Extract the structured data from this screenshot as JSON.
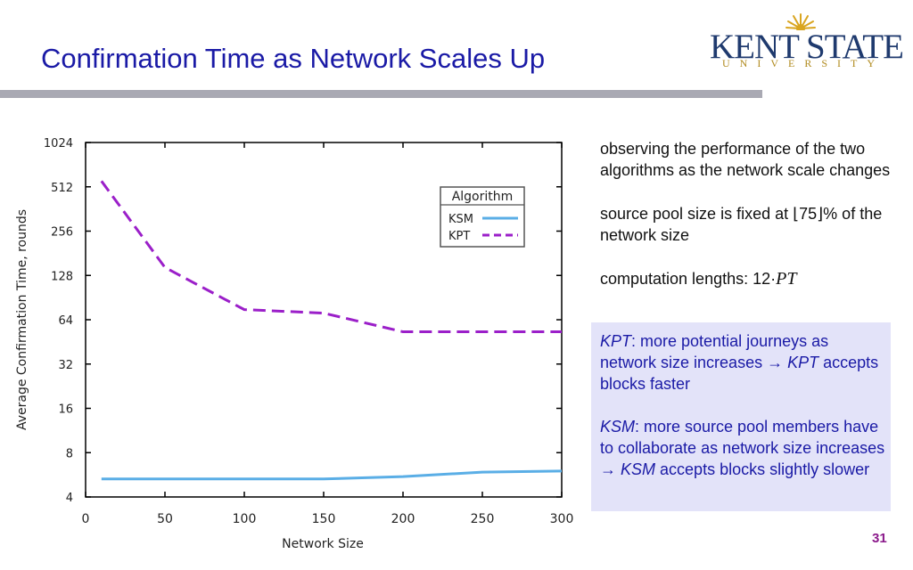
{
  "slide": {
    "title": "Confirmation Time as Network Scales Up",
    "page_number": "31"
  },
  "logo": {
    "main": "KENT STATE",
    "sub": "UNIVERSITY"
  },
  "notes": {
    "p1": "observing the performance of the two algorithms as the network scale changes",
    "p2": "source pool size is fixed at ⌊75⌋% of the network size",
    "p3_prefix": "computation lengths: 12·",
    "p3_var": "PT"
  },
  "highlight": {
    "kpt_name": "KPT",
    "kpt_text_1": ": more potential journeys as network size increases → ",
    "kpt_text_2": " accepts blocks faster",
    "ksm_name": "KSM",
    "ksm_text_1": ": more source pool members have to collaborate as network size increases → ",
    "ksm_text_2": " accepts blocks slightly slower"
  },
  "colors": {
    "title": "#1a1aa6",
    "ksm": "#5aaee6",
    "kpt": "#9b1fc9",
    "highlight_bg": "#e3e3f9"
  },
  "chart_data": {
    "type": "line",
    "title": "",
    "xlabel": "Network Size",
    "ylabel": "Average Confirmation Time, rounds",
    "yscale": "log2",
    "xlim": [
      0,
      300
    ],
    "ylim": [
      4,
      1024
    ],
    "xticks": [
      0,
      50,
      100,
      150,
      200,
      250,
      300
    ],
    "yticks": [
      4,
      8,
      16,
      32,
      64,
      128,
      256,
      512,
      1024
    ],
    "x": [
      10,
      50,
      100,
      150,
      200,
      250,
      300
    ],
    "legend_title": "Algorithm",
    "legend_position": "top-right",
    "series": [
      {
        "name": "KSM",
        "style": "solid",
        "values": [
          5.3,
          5.3,
          5.3,
          5.3,
          5.5,
          5.9,
          6.0
        ]
      },
      {
        "name": "KPT",
        "style": "dashed",
        "values": [
          560,
          145,
          75,
          71,
          53,
          53,
          53
        ]
      }
    ]
  }
}
